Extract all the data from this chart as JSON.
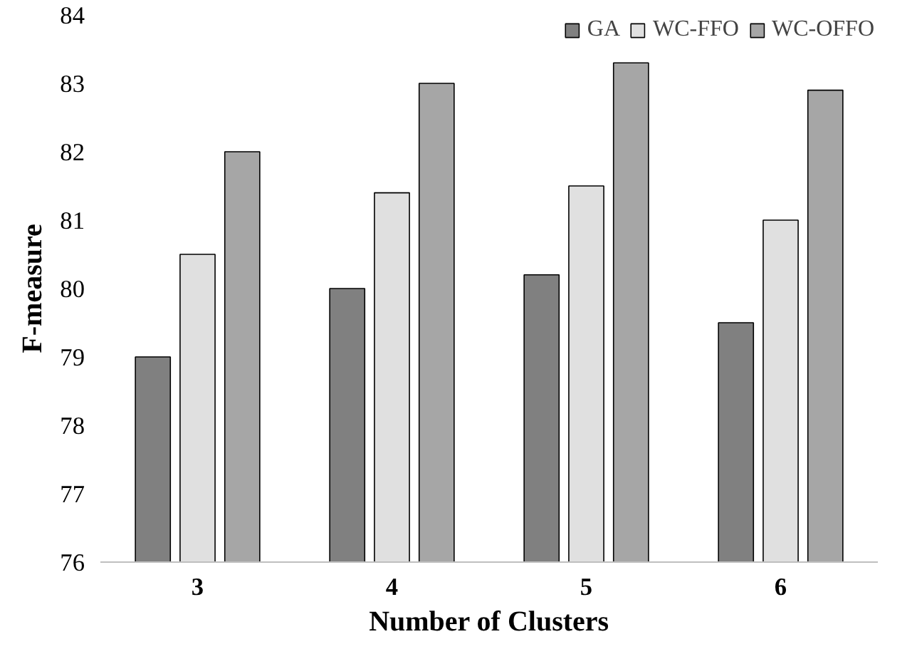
{
  "chart_data": {
    "type": "bar",
    "xlabel": "Number of Clusters",
    "ylabel": "F-measure",
    "categories": [
      "3",
      "4",
      "5",
      "6"
    ],
    "series": [
      {
        "name": "GA",
        "color": "#808080",
        "values": [
          79,
          80,
          80.2,
          79.5
        ]
      },
      {
        "name": "WC-FFO",
        "color": "#e0e0e0",
        "values": [
          80.5,
          81.4,
          81.5,
          81
        ]
      },
      {
        "name": "WC-OFFO",
        "color": "#a6a6a6",
        "values": [
          82,
          83,
          83.3,
          82.9
        ]
      }
    ],
    "ylim": [
      76,
      84
    ],
    "yticks": [
      76,
      77,
      78,
      79,
      80,
      81,
      82,
      83,
      84
    ],
    "grid": false,
    "legend": "top right"
  }
}
